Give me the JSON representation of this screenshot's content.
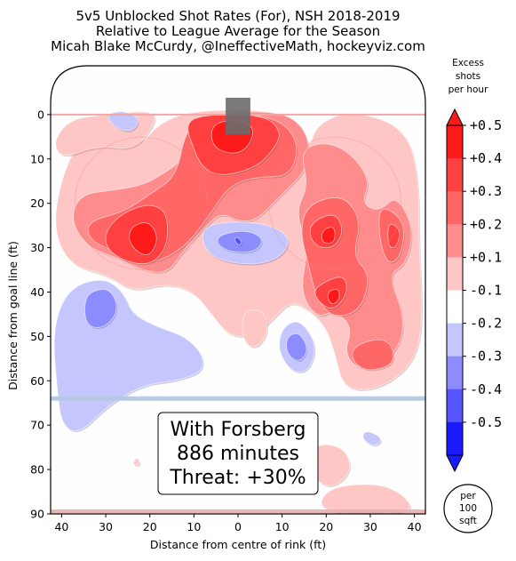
{
  "chart_data": {
    "type": "heatmap",
    "title_lines": [
      "5v5 Unblocked Shot Rates (For), NSH 2018-2019",
      "Relative to League Average for the Season",
      "Micah Blake McCurdy, @IneffectiveMath, hockeyviz.com"
    ],
    "xlabel": "Distance from centre of rink (ft)",
    "ylabel": "Distance from goal line (ft)",
    "x_ticks": [
      {
        "v": -40,
        "label": "40"
      },
      {
        "v": -30,
        "label": "30"
      },
      {
        "v": -20,
        "label": "20"
      },
      {
        "v": -10,
        "label": "10"
      },
      {
        "v": 0,
        "label": "0"
      },
      {
        "v": 10,
        "label": "10"
      },
      {
        "v": 20,
        "label": "20"
      },
      {
        "v": 30,
        "label": "30"
      },
      {
        "v": 40,
        "label": "40"
      }
    ],
    "y_ticks": [
      0,
      10,
      20,
      30,
      40,
      50,
      60,
      70,
      80,
      90
    ],
    "xlim": [
      -42.5,
      42.5
    ],
    "ylim": [
      -11,
      90
    ],
    "colorbar": {
      "title": [
        "Excess",
        "shots",
        "per hour"
      ],
      "labels": [
        "+0.5",
        "+0.4",
        "+0.3",
        "+0.2",
        "+0.1",
        "-0.1",
        "-0.2",
        "-0.3",
        "-0.4",
        "-0.5"
      ],
      "colors": [
        "#ff1a1a",
        "#ff4040",
        "#ff6666",
        "#ff8c8c",
        "#ffc6c6",
        "#ffffff",
        "#c6c6ff",
        "#8c8cff",
        "#5555ff",
        "#1a1aff"
      ]
    },
    "units_badge": [
      "per",
      "100",
      "sqft"
    ],
    "annotation": [
      "With Forsberg",
      "886 minutes",
      "Threat: +30%"
    ],
    "regions": [
      {
        "level": 1,
        "pts": [
          [
            -36,
            6
          ],
          [
            -28,
            5
          ],
          [
            -22,
            7
          ],
          [
            -18,
            2
          ],
          [
            -10,
            -1
          ],
          [
            8,
            -1
          ],
          [
            14,
            2
          ],
          [
            16,
            8
          ],
          [
            18,
            2
          ],
          [
            26,
            -1
          ],
          [
            38,
            3
          ],
          [
            41,
            14
          ],
          [
            41,
            30
          ],
          [
            42,
            46
          ],
          [
            40,
            56
          ],
          [
            32,
            62
          ],
          [
            24,
            62
          ],
          [
            22,
            54
          ],
          [
            20,
            48
          ],
          [
            16,
            44
          ],
          [
            12,
            42
          ],
          [
            8,
            46
          ],
          [
            4,
            50
          ],
          [
            -2,
            50
          ],
          [
            -6,
            45
          ],
          [
            -10,
            40
          ],
          [
            -16,
            38
          ],
          [
            -24,
            40
          ],
          [
            -30,
            36
          ],
          [
            -38,
            34
          ],
          [
            -42,
            26
          ],
          [
            -40,
            14
          ]
        ]
      },
      {
        "level": 1,
        "pts": [
          [
            -18,
            -1
          ],
          [
            -30,
            0
          ],
          [
            -38,
            1
          ],
          [
            -42,
            6
          ],
          [
            -40,
            10
          ],
          [
            -32,
            7
          ],
          [
            -24,
            8
          ],
          [
            -20,
            4
          ]
        ]
      },
      {
        "level": 1,
        "pts": [
          [
            18,
            74
          ],
          [
            24,
            75
          ],
          [
            26,
            80
          ],
          [
            22,
            84
          ],
          [
            18,
            83
          ],
          [
            16,
            78
          ]
        ]
      },
      {
        "level": 1,
        "pts": [
          [
            20,
            84
          ],
          [
            32,
            83
          ],
          [
            38,
            86
          ],
          [
            40,
            90
          ],
          [
            18,
            90
          ]
        ]
      },
      {
        "level": 1,
        "pts": [
          [
            -23,
            77
          ],
          [
            -22,
            79
          ],
          [
            -24,
            79
          ]
        ]
      },
      {
        "level": 1,
        "pts": [
          [
            1,
            44
          ],
          [
            6,
            44
          ],
          [
            7,
            49
          ],
          [
            4,
            53
          ],
          [
            1,
            51
          ]
        ]
      },
      {
        "level": 2,
        "pts": [
          [
            -10,
            3
          ],
          [
            -8,
            0
          ],
          [
            10,
            -1
          ],
          [
            16,
            4
          ],
          [
            16,
            12
          ],
          [
            10,
            18
          ],
          [
            4,
            24
          ],
          [
            0,
            24
          ],
          [
            -4,
            22
          ],
          [
            -8,
            26
          ],
          [
            -12,
            30
          ],
          [
            -16,
            36
          ],
          [
            -22,
            35
          ],
          [
            -28,
            32
          ],
          [
            -34,
            30
          ],
          [
            -38,
            24
          ],
          [
            -36,
            18
          ],
          [
            -28,
            17
          ],
          [
            -22,
            16
          ],
          [
            -18,
            14
          ],
          [
            -12,
            10
          ]
        ]
      },
      {
        "level": 2,
        "pts": [
          [
            14,
            8
          ],
          [
            20,
            6
          ],
          [
            26,
            9
          ],
          [
            30,
            15
          ],
          [
            28,
            20
          ],
          [
            32,
            22
          ],
          [
            36,
            18
          ],
          [
            40,
            26
          ],
          [
            38,
            34
          ],
          [
            34,
            36
          ],
          [
            38,
            46
          ],
          [
            36,
            54
          ],
          [
            28,
            58
          ],
          [
            24,
            54
          ],
          [
            26,
            48
          ],
          [
            22,
            44
          ],
          [
            18,
            46
          ],
          [
            14,
            40
          ],
          [
            16,
            30
          ],
          [
            13,
            22
          ],
          [
            16,
            16
          ]
        ]
      },
      {
        "level": 3,
        "pts": [
          [
            -12,
            4
          ],
          [
            -8,
            0
          ],
          [
            8,
            0
          ],
          [
            14,
            6
          ],
          [
            12,
            14
          ],
          [
            4,
            14
          ],
          [
            -2,
            16
          ],
          [
            -6,
            22
          ],
          [
            -12,
            30
          ],
          [
            -20,
            34
          ],
          [
            -28,
            31
          ],
          [
            -34,
            28
          ],
          [
            -34,
            24
          ],
          [
            -26,
            22
          ],
          [
            -20,
            18
          ],
          [
            -14,
            14
          ]
        ]
      },
      {
        "level": 3,
        "pts": [
          [
            16,
            20
          ],
          [
            24,
            18
          ],
          [
            28,
            24
          ],
          [
            26,
            32
          ],
          [
            30,
            36
          ],
          [
            28,
            44
          ],
          [
            22,
            46
          ],
          [
            18,
            42
          ],
          [
            16,
            34
          ],
          [
            14,
            26
          ]
        ]
      },
      {
        "level": 3,
        "pts": [
          [
            32,
            20
          ],
          [
            38,
            24
          ],
          [
            37,
            32
          ],
          [
            34,
            34
          ],
          [
            32,
            28
          ]
        ]
      },
      {
        "level": 3,
        "pts": [
          [
            26,
            52
          ],
          [
            34,
            50
          ],
          [
            36,
            56
          ],
          [
            30,
            58
          ],
          [
            26,
            56
          ]
        ]
      },
      {
        "level": 4,
        "pts": [
          [
            -12,
            2
          ],
          [
            -8,
            0
          ],
          [
            6,
            0
          ],
          [
            10,
            4
          ],
          [
            8,
            8
          ],
          [
            4,
            12
          ],
          [
            -4,
            14
          ],
          [
            -8,
            12
          ],
          [
            -10,
            8
          ]
        ]
      },
      {
        "level": 4,
        "pts": [
          [
            -26,
            22
          ],
          [
            -20,
            20
          ],
          [
            -16,
            22
          ],
          [
            -16,
            30
          ],
          [
            -20,
            34
          ],
          [
            -26,
            33
          ],
          [
            -30,
            30
          ],
          [
            -30,
            26
          ]
        ]
      },
      {
        "level": 4,
        "pts": [
          [
            17,
            24
          ],
          [
            22,
            22
          ],
          [
            24,
            26
          ],
          [
            22,
            30
          ],
          [
            18,
            30
          ],
          [
            16,
            27
          ]
        ]
      },
      {
        "level": 4,
        "pts": [
          [
            19,
            38
          ],
          [
            24,
            36
          ],
          [
            25,
            40
          ],
          [
            22,
            44
          ],
          [
            19,
            43
          ],
          [
            17,
            40
          ]
        ]
      },
      {
        "level": 4,
        "pts": [
          [
            34,
            24
          ],
          [
            37,
            26
          ],
          [
            36,
            30
          ],
          [
            34,
            30
          ]
        ]
      },
      {
        "level": 5,
        "pts": [
          [
            -6,
            2
          ],
          [
            0,
            1
          ],
          [
            4,
            3
          ],
          [
            2,
            8
          ],
          [
            -2,
            9
          ],
          [
            -6,
            7
          ]
        ]
      },
      {
        "level": 5,
        "pts": [
          [
            -24,
            25
          ],
          [
            -20,
            24
          ],
          [
            -18,
            28
          ],
          [
            -20,
            32
          ],
          [
            -23,
            31
          ],
          [
            -25,
            28
          ]
        ]
      },
      {
        "level": 5,
        "pts": [
          [
            19,
            26
          ],
          [
            22,
            25
          ],
          [
            22,
            29
          ],
          [
            19,
            29
          ]
        ]
      },
      {
        "level": 5,
        "pts": [
          [
            20,
            40
          ],
          [
            23,
            39
          ],
          [
            23,
            42
          ],
          [
            21,
            43
          ]
        ]
      },
      {
        "level": -1,
        "pts": [
          [
            -30,
            0
          ],
          [
            -26,
            -1
          ],
          [
            -22,
            1
          ],
          [
            -24,
            4
          ],
          [
            -28,
            3
          ]
        ]
      },
      {
        "level": -1,
        "pts": [
          [
            -8,
            25
          ],
          [
            0,
            24
          ],
          [
            8,
            25
          ],
          [
            12,
            28
          ],
          [
            10,
            32
          ],
          [
            4,
            34
          ],
          [
            -4,
            33
          ],
          [
            -8,
            30
          ]
        ]
      },
      {
        "level": -1,
        "pts": [
          [
            -36,
            38
          ],
          [
            -30,
            37
          ],
          [
            -26,
            40
          ],
          [
            -24,
            45
          ],
          [
            -18,
            48
          ],
          [
            -12,
            50
          ],
          [
            -8,
            54
          ],
          [
            -8,
            58
          ],
          [
            -14,
            60
          ],
          [
            -22,
            61
          ],
          [
            -30,
            66
          ],
          [
            -36,
            72
          ],
          [
            -40,
            70
          ],
          [
            -41,
            62
          ],
          [
            -42,
            50
          ],
          [
            -40,
            42
          ]
        ]
      },
      {
        "level": -1,
        "pts": [
          [
            10,
            48
          ],
          [
            14,
            46
          ],
          [
            18,
            52
          ],
          [
            16,
            58
          ],
          [
            12,
            58
          ],
          [
            9,
            53
          ]
        ]
      },
      {
        "level": -1,
        "pts": [
          [
            29,
            71
          ],
          [
            33,
            73
          ],
          [
            31,
            75
          ],
          [
            28,
            73
          ]
        ]
      },
      {
        "level": -2,
        "pts": [
          [
            -34,
            40
          ],
          [
            -29,
            39
          ],
          [
            -27,
            44
          ],
          [
            -30,
            48
          ],
          [
            -34,
            48
          ],
          [
            -35,
            44
          ]
        ]
      },
      {
        "level": -2,
        "pts": [
          [
            -4,
            27
          ],
          [
            2,
            26
          ],
          [
            6,
            28
          ],
          [
            4,
            31
          ],
          [
            -2,
            31
          ],
          [
            -5,
            29
          ]
        ]
      },
      {
        "level": -2,
        "pts": [
          [
            11,
            50
          ],
          [
            14,
            49
          ],
          [
            16,
            53
          ],
          [
            14,
            56
          ],
          [
            11,
            54
          ]
        ]
      },
      {
        "level": -3,
        "pts": [
          [
            -1,
            28
          ],
          [
            0,
            27.5
          ],
          [
            1,
            29
          ],
          [
            0,
            29.5
          ]
        ]
      }
    ]
  }
}
